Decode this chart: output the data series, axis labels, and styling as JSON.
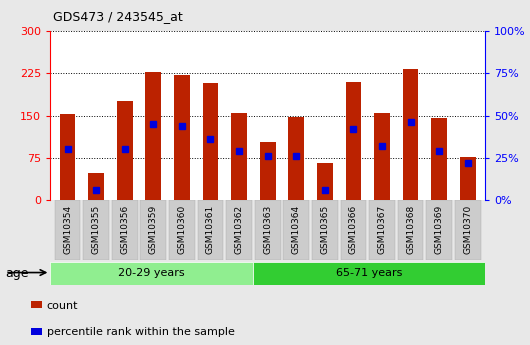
{
  "title": "GDS473 / 243545_at",
  "samples": [
    "GSM10354",
    "GSM10355",
    "GSM10356",
    "GSM10359",
    "GSM10360",
    "GSM10361",
    "GSM10362",
    "GSM10363",
    "GSM10364",
    "GSM10365",
    "GSM10366",
    "GSM10367",
    "GSM10368",
    "GSM10369",
    "GSM10370"
  ],
  "counts": [
    152,
    48,
    175,
    228,
    222,
    207,
    155,
    103,
    147,
    65,
    210,
    155,
    232,
    145,
    77
  ],
  "percentile_ranks": [
    30,
    6,
    30,
    45,
    44,
    36,
    29,
    26,
    26,
    6,
    42,
    32,
    46,
    29,
    22
  ],
  "groups": [
    {
      "label": "20-29 years",
      "start": 0,
      "end": 7,
      "color": "#90EE90"
    },
    {
      "label": "65-71 years",
      "start": 7,
      "end": 15,
      "color": "#32CD32"
    }
  ],
  "bar_color": "#BB2200",
  "percentile_color": "#0000DD",
  "left_ylim": [
    0,
    300
  ],
  "right_ylim": [
    0,
    100
  ],
  "left_yticks": [
    0,
    75,
    150,
    225,
    300
  ],
  "right_yticks": [
    0,
    25,
    50,
    75,
    100
  ],
  "background_color": "#e8e8e8",
  "plot_bg_color": "#ffffff",
  "bar_width": 0.55,
  "age_label": "age",
  "legend_count": "count",
  "legend_percentile": "percentile rank within the sample"
}
